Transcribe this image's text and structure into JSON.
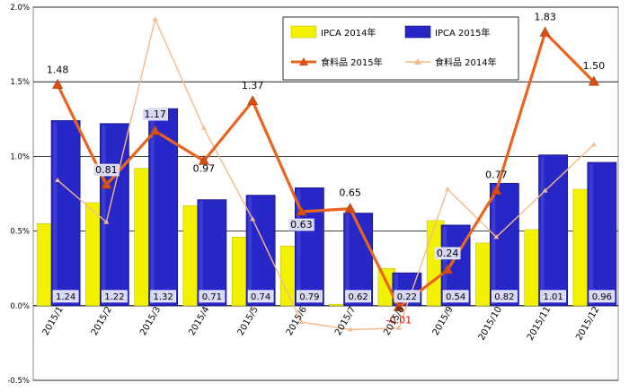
{
  "chart_data": {
    "type": "bar+line",
    "title": "",
    "xlabel": "",
    "ylabel": "",
    "ylim": [
      -0.5,
      2.0
    ],
    "yticks": [
      -0.5,
      0.0,
      0.5,
      1.0,
      1.5,
      2.0
    ],
    "ytick_labels": [
      "-0.5%",
      "0.0%",
      "0.5%",
      "1.0%",
      "1.5%",
      "2.0%"
    ],
    "grid": "horizontal",
    "legend_position": "top-right",
    "categories": [
      "2015/1",
      "2015/2",
      "2015/3",
      "2015/4",
      "2015/5",
      "2015/6",
      "2015/7",
      "2015/8",
      "2015/9",
      "2015/10",
      "2015/11",
      "2015/12"
    ],
    "series": [
      {
        "name": "IPCA 2014年",
        "kind": "bar",
        "color": "#f2f200",
        "values": [
          0.55,
          0.69,
          0.92,
          0.67,
          0.46,
          0.4,
          0.01,
          0.25,
          0.57,
          0.42,
          0.51,
          0.78
        ]
      },
      {
        "name": "IPCA 2015年",
        "kind": "bar",
        "color": "#2727c8",
        "values": [
          1.24,
          1.22,
          1.32,
          0.71,
          0.74,
          0.79,
          0.62,
          0.22,
          0.54,
          0.82,
          1.01,
          0.96
        ]
      },
      {
        "name": "食料品 2015年",
        "kind": "line",
        "color": "#e8641e",
        "values": [
          1.48,
          0.81,
          1.17,
          0.97,
          1.37,
          0.63,
          0.65,
          -0.01,
          0.24,
          0.77,
          1.83,
          1.5
        ]
      },
      {
        "name": "食料品 2014年",
        "kind": "line",
        "color": "#f5b98a",
        "values": [
          0.84,
          0.56,
          1.92,
          1.19,
          0.58,
          -0.11,
          -0.16,
          -0.15,
          0.78,
          0.46,
          0.77,
          1.08
        ]
      }
    ],
    "bar_value_labels": [
      "1.24",
      "1.22",
      "1.32",
      "0.71",
      "0.74",
      "0.79",
      "0.62",
      "0.22",
      "0.54",
      "0.82",
      "1.01",
      "0.96"
    ],
    "line_value_labels": [
      "1.48",
      "0.81",
      "1.17",
      "0.97",
      "1.37",
      "0.63",
      "0.65",
      "-0.01",
      "0.24",
      "0.77",
      "1.83",
      "1.50"
    ]
  }
}
